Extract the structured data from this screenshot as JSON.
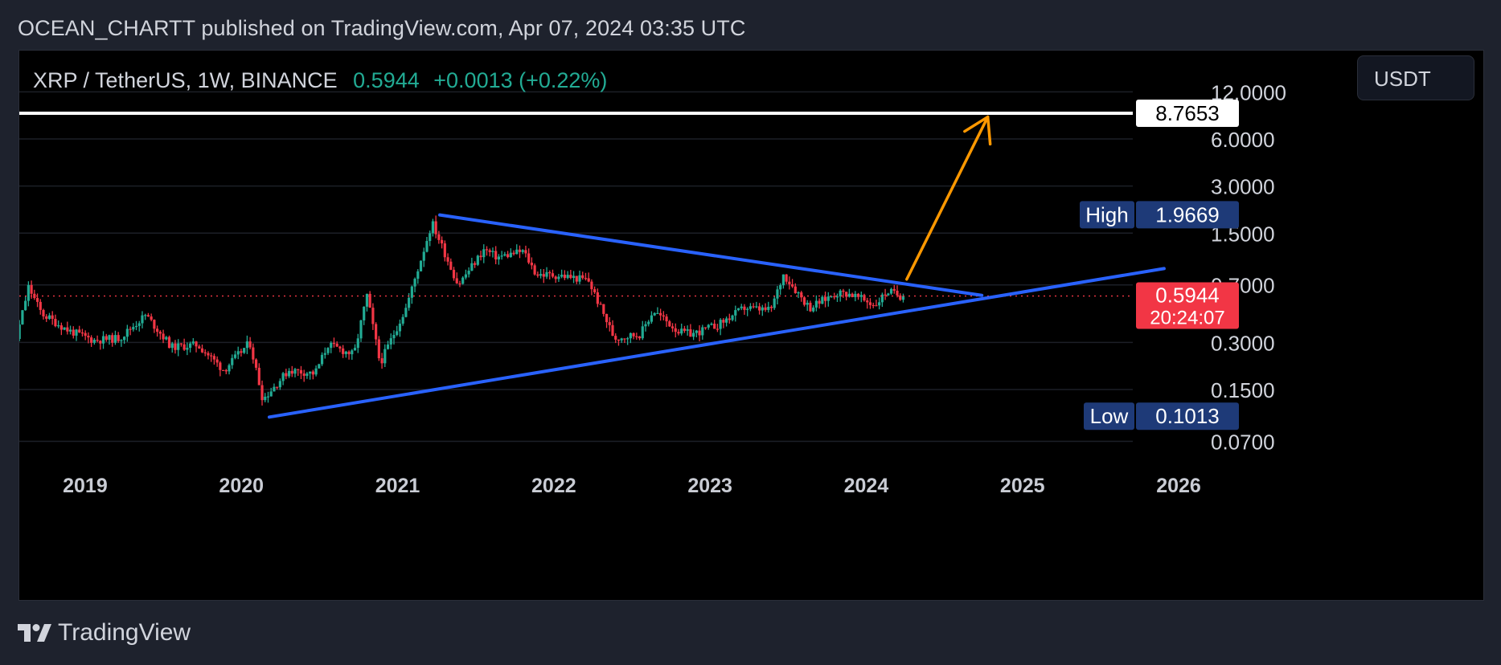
{
  "header": {
    "published_line": "OCEAN_CHARTT published on TradingView.com, Apr 07, 2024 03:35 UTC"
  },
  "legend": {
    "symbol": "XRP / TetherUS, 1W, BINANCE",
    "price": "0.5944",
    "change": "+0.0013 (+0.22%)"
  },
  "currency_button": "USDT",
  "footer": {
    "brand": "TradingView",
    "logo_icon": "tradingview-logo-icon"
  },
  "colors": {
    "up": "#22ab94",
    "down": "#f23645",
    "trendline": "#2962ff",
    "arrow": "#ff9800",
    "target_line": "#ffffff",
    "high_low_badge": "#1e3a78",
    "last_price_badge": "#f23645"
  },
  "chart_data": {
    "type": "candlestick",
    "symbol": "XRP / TetherUS",
    "interval": "1W",
    "exchange": "BINANCE",
    "y_scale": "log",
    "y_ticks": [
      "12.0000",
      "6.0000",
      "3.0000",
      "1.5000",
      "0.7000",
      "0.3000",
      "0.1500",
      "0.0700"
    ],
    "x_ticks": [
      "2019",
      "2020",
      "2021",
      "2022",
      "2023",
      "2024",
      "2025",
      "2026"
    ],
    "grid": true,
    "badges": {
      "target": "8.7653",
      "high_label": "High",
      "high_value": "1.9669",
      "last_price": "0.5944",
      "countdown": "20:24:07",
      "low_label": "Low",
      "low_value": "0.1013"
    },
    "annotations": {
      "horizontal_line": 8.7653,
      "triangle_upper": [
        {
          "date": "2021-04-12",
          "value": 1.96
        },
        {
          "date": "2024-10-01",
          "value": 0.6
        }
      ],
      "triangle_lower": [
        {
          "date": "2020-03-09",
          "value": 0.1
        },
        {
          "date": "2025-12-01",
          "value": 0.89
        }
      ],
      "arrow": [
        {
          "date": "2024-04-08",
          "value": 0.76
        },
        {
          "date": "2024-10-15",
          "value": 8.3
        }
      ]
    },
    "price_path": [
      [
        "2018-06",
        0.47
      ],
      [
        "2018-08",
        0.3
      ],
      [
        "2018-09",
        0.68
      ],
      [
        "2018-10",
        0.46
      ],
      [
        "2018-12",
        0.36
      ],
      [
        "2019-02",
        0.31
      ],
      [
        "2019-04",
        0.32
      ],
      [
        "2019-06",
        0.45
      ],
      [
        "2019-08",
        0.28
      ],
      [
        "2019-10",
        0.29
      ],
      [
        "2019-12",
        0.2
      ],
      [
        "2020-02",
        0.3
      ],
      [
        "2020-03",
        0.13
      ],
      [
        "2020-05",
        0.2
      ],
      [
        "2020-07",
        0.19
      ],
      [
        "2020-08",
        0.29
      ],
      [
        "2020-10",
        0.25
      ],
      [
        "2020-11",
        0.6
      ],
      [
        "2020-12",
        0.22
      ],
      [
        "2021-02",
        0.5
      ],
      [
        "2021-04",
        1.75
      ],
      [
        "2021-06",
        0.7
      ],
      [
        "2021-08",
        1.18
      ],
      [
        "2021-09",
        1.05
      ],
      [
        "2021-11",
        1.15
      ],
      [
        "2021-12",
        0.82
      ],
      [
        "2022-02",
        0.8
      ],
      [
        "2022-04",
        0.75
      ],
      [
        "2022-06",
        0.32
      ],
      [
        "2022-08",
        0.34
      ],
      [
        "2022-09",
        0.48
      ],
      [
        "2022-11",
        0.35
      ],
      [
        "2022-12",
        0.34
      ],
      [
        "2023-02",
        0.39
      ],
      [
        "2023-04",
        0.5
      ],
      [
        "2023-06",
        0.48
      ],
      [
        "2023-07",
        0.82
      ],
      [
        "2023-09",
        0.5
      ],
      [
        "2023-11",
        0.62
      ],
      [
        "2023-12",
        0.62
      ],
      [
        "2024-02",
        0.52
      ],
      [
        "2024-03",
        0.64
      ],
      [
        "2024-04",
        0.5944
      ]
    ]
  }
}
